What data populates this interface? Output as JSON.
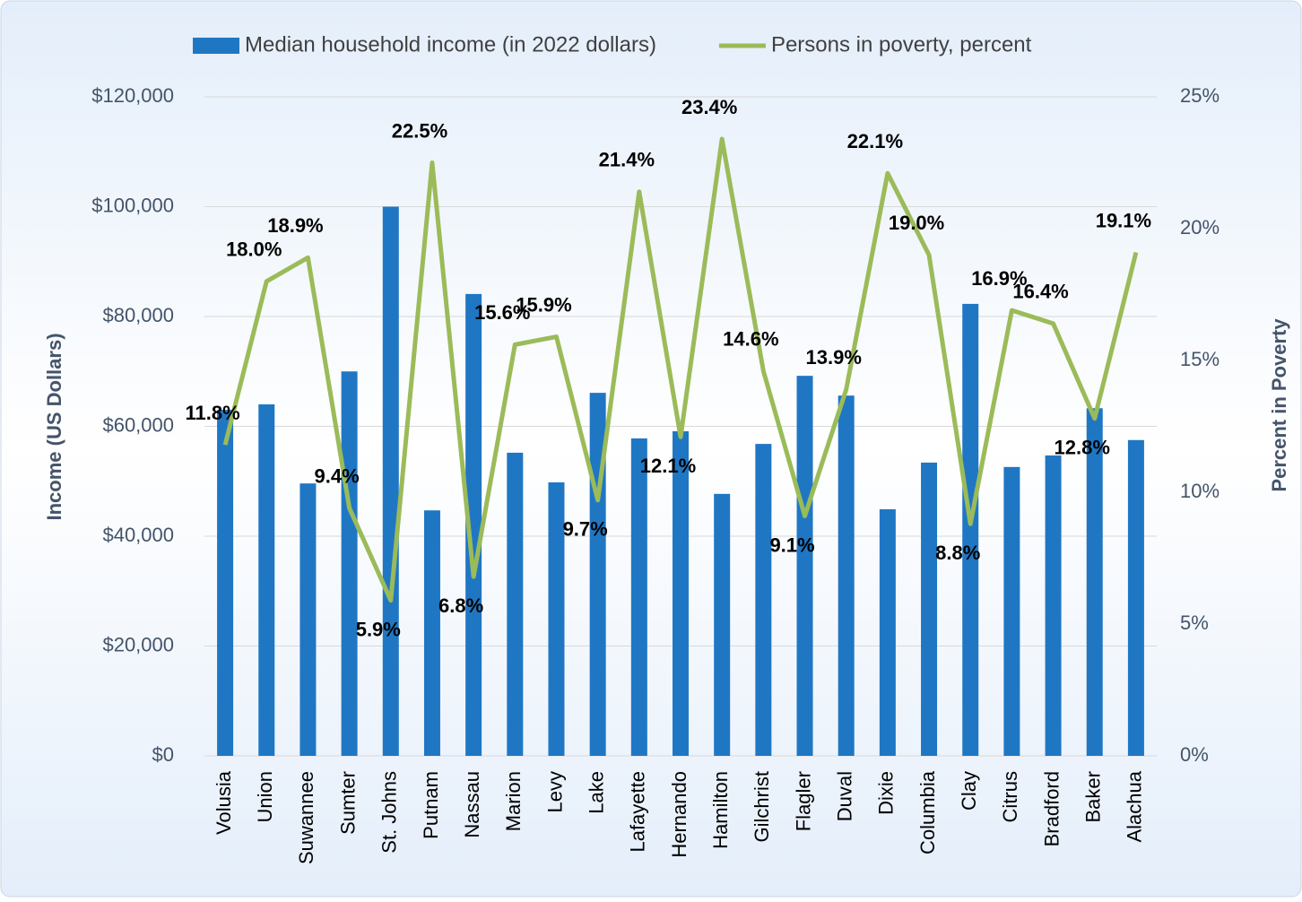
{
  "chart_data": {
    "type": "bar-line",
    "categories": [
      "Volusia",
      "Union",
      "Suwannee",
      "Sumter",
      "St. Johns",
      "Putnam",
      "Nassau",
      "Marion",
      "Levy",
      "Lake",
      "Lafayette",
      "Hernando",
      "Hamilton",
      "Gilchrist",
      "Flagler",
      "Duval",
      "Dixie",
      "Columbia",
      "Clay",
      "Citrus",
      "Bradford",
      "Baker",
      "Alachua"
    ],
    "series": [
      {
        "name": "Median household income (in 2022 dollars)",
        "type": "bar",
        "color": "#1f77c4",
        "values": [
          63000,
          64000,
          49600,
          70000,
          100000,
          44700,
          84100,
          55200,
          49800,
          66100,
          57800,
          59100,
          47700,
          56800,
          69200,
          65600,
          44900,
          53400,
          82300,
          52600,
          54700,
          63300,
          57500
        ]
      },
      {
        "name": "Persons in poverty, percent",
        "type": "line",
        "axis": "y2",
        "color": "#9bbb59",
        "values": [
          11.8,
          18.0,
          18.9,
          9.4,
          5.9,
          22.5,
          6.8,
          15.6,
          15.9,
          9.7,
          21.4,
          12.1,
          23.4,
          14.6,
          9.1,
          13.9,
          22.1,
          19.0,
          8.8,
          16.9,
          16.4,
          12.8,
          19.1
        ],
        "value_labels": [
          "11.8%",
          "18.0%",
          "18.9%",
          "9.4%",
          "5.9%",
          "22.5%",
          "6.8%",
          "15.6%",
          "15.9%",
          "9.7%",
          "21.4%",
          "12.1%",
          "23.4%",
          "14.6%",
          "9.1%",
          "13.9%",
          "22.1%",
          "19.0%",
          "8.8%",
          "16.9%",
          "16.4%",
          "12.8%",
          "19.1%"
        ]
      }
    ],
    "ylabel": "Income (US Dollars)",
    "y2label": "Percent in Poverty",
    "ylim": [
      0,
      120000
    ],
    "yticks": [
      {
        "value": 0,
        "label": "$0"
      },
      {
        "value": 20000,
        "label": "$20,000"
      },
      {
        "value": 40000,
        "label": "$40,000"
      },
      {
        "value": 60000,
        "label": "$60,000"
      },
      {
        "value": 80000,
        "label": "$80,000"
      },
      {
        "value": 100000,
        "label": "$100,000"
      },
      {
        "value": 120000,
        "label": "$120,000"
      }
    ],
    "y2lim": [
      0,
      25
    ],
    "y2ticks": [
      {
        "value": 0,
        "label": "0%"
      },
      {
        "value": 5,
        "label": "5%"
      },
      {
        "value": 10,
        "label": "10%"
      },
      {
        "value": 15,
        "label": "15%"
      },
      {
        "value": 20,
        "label": "20%"
      },
      {
        "value": 25,
        "label": "25%"
      }
    ],
    "grid": true,
    "legend": "top"
  }
}
